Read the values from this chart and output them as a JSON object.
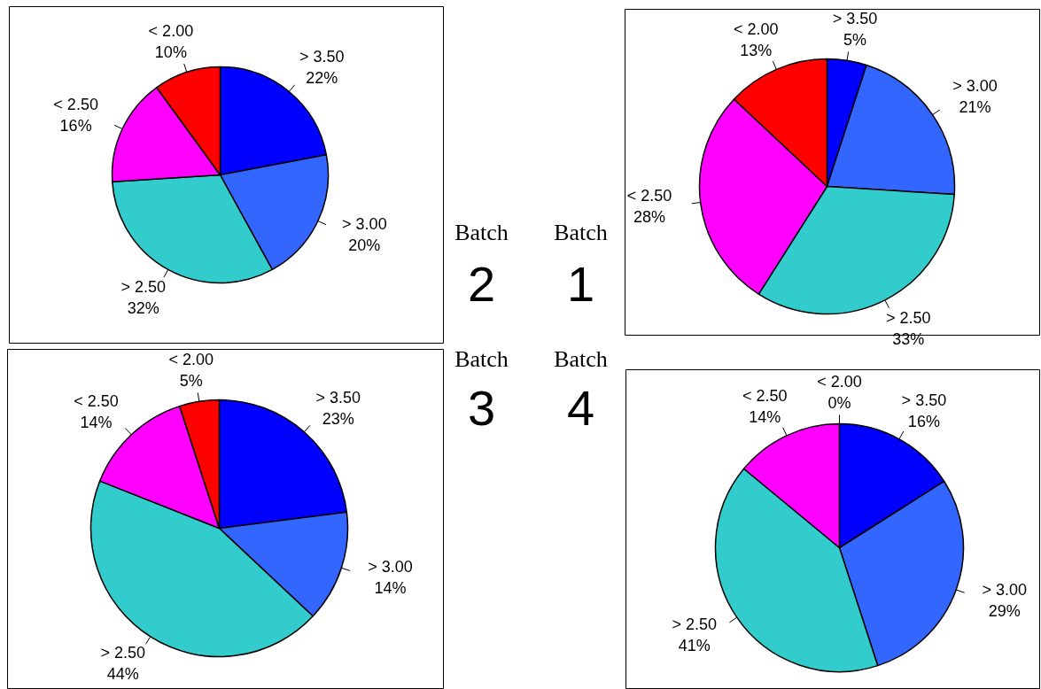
{
  "chart_data": [
    {
      "type": "pie",
      "title": "Batch",
      "subtitle": "2",
      "categories": [
        "> 3.50",
        "> 3.00",
        "> 2.50",
        "< 2.50",
        "< 2.00"
      ],
      "values": [
        22,
        20,
        32,
        16,
        10
      ],
      "value_labels": [
        "22%",
        "20%",
        "32%",
        "16%",
        "10%"
      ],
      "colors": [
        "#0000ff",
        "#3366ff",
        "#33cccc",
        "#ff00ff",
        "#ff0000"
      ]
    },
    {
      "type": "pie",
      "title": "Batch",
      "subtitle": "1",
      "categories": [
        "> 3.50",
        "> 3.00",
        "> 2.50",
        "< 2.50",
        "< 2.00"
      ],
      "values": [
        5,
        21,
        33,
        28,
        13
      ],
      "value_labels": [
        "5%",
        "21%",
        "33%",
        "28%",
        "13%"
      ],
      "colors": [
        "#0000ff",
        "#3366ff",
        "#33cccc",
        "#ff00ff",
        "#ff0000"
      ]
    },
    {
      "type": "pie",
      "title": "Batch",
      "subtitle": "3",
      "categories": [
        "> 3.50",
        "> 3.00",
        "> 2.50",
        "< 2.50",
        "< 2.00"
      ],
      "values": [
        23,
        14,
        44,
        14,
        5
      ],
      "value_labels": [
        "23%",
        "14%",
        "44%",
        "14%",
        "5%"
      ],
      "colors": [
        "#0000ff",
        "#3366ff",
        "#33cccc",
        "#ff00ff",
        "#ff0000"
      ]
    },
    {
      "type": "pie",
      "title": "Batch",
      "subtitle": "4",
      "categories": [
        "> 3.50",
        "> 3.00",
        "> 2.50",
        "< 2.50",
        "< 2.00"
      ],
      "values": [
        16,
        29,
        41,
        14,
        0
      ],
      "value_labels": [
        "16%",
        "29%",
        "41%",
        "14%",
        "0%"
      ],
      "colors": [
        "#0000ff",
        "#3366ff",
        "#33cccc",
        "#ff00ff",
        "#ff0000"
      ]
    }
  ]
}
